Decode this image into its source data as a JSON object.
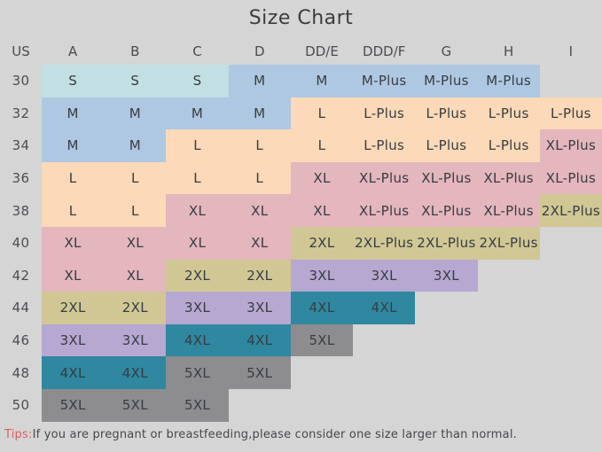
{
  "title": "Size Chart",
  "palette": {
    "cyan": "#c2dfe4",
    "blue": "#aec8e2",
    "peach": "#fcd9b8",
    "pink": "#e4b6bd",
    "olive": "#d0c795",
    "purple": "#b6a8d1",
    "teal": "#2f87a0",
    "gray": "#8d8d90",
    "background": "#d5d5d5",
    "tips_red": "#dd6060"
  },
  "chart_data": {
    "type": "table",
    "title": "Size Chart",
    "columns": [
      "US",
      "A",
      "B",
      "C",
      "D",
      "DD/E",
      "DDD/F",
      "G",
      "H",
      "I"
    ],
    "rows": [
      {
        "us": "30",
        "cells": [
          {
            "size": "S",
            "color": "cyan"
          },
          {
            "size": "S",
            "color": "cyan"
          },
          {
            "size": "S",
            "color": "cyan"
          },
          {
            "size": "M",
            "color": "blue"
          },
          {
            "size": "M",
            "color": "blue"
          },
          {
            "size": "M-Plus",
            "color": "blue"
          },
          {
            "size": "M-Plus",
            "color": "blue"
          },
          {
            "size": "M-Plus",
            "color": "blue"
          },
          null
        ]
      },
      {
        "us": "32",
        "cells": [
          {
            "size": "M",
            "color": "blue"
          },
          {
            "size": "M",
            "color": "blue"
          },
          {
            "size": "M",
            "color": "blue"
          },
          {
            "size": "M",
            "color": "blue"
          },
          {
            "size": "L",
            "color": "peach"
          },
          {
            "size": "L-Plus",
            "color": "peach"
          },
          {
            "size": "L-Plus",
            "color": "peach"
          },
          {
            "size": "L-Plus",
            "color": "peach"
          },
          {
            "size": "L-Plus",
            "color": "peach"
          }
        ]
      },
      {
        "us": "34",
        "cells": [
          {
            "size": "M",
            "color": "blue"
          },
          {
            "size": "M",
            "color": "blue"
          },
          {
            "size": "L",
            "color": "peach"
          },
          {
            "size": "L",
            "color": "peach"
          },
          {
            "size": "L",
            "color": "peach"
          },
          {
            "size": "L-Plus",
            "color": "peach"
          },
          {
            "size": "L-Plus",
            "color": "peach"
          },
          {
            "size": "L-Plus",
            "color": "peach"
          },
          {
            "size": "XL-Plus",
            "color": "pink"
          }
        ]
      },
      {
        "us": "36",
        "cells": [
          {
            "size": "L",
            "color": "peach"
          },
          {
            "size": "L",
            "color": "peach"
          },
          {
            "size": "L",
            "color": "peach"
          },
          {
            "size": "L",
            "color": "peach"
          },
          {
            "size": "XL",
            "color": "pink"
          },
          {
            "size": "XL-Plus",
            "color": "pink"
          },
          {
            "size": "XL-Plus",
            "color": "pink"
          },
          {
            "size": "XL-Plus",
            "color": "pink"
          },
          {
            "size": "XL-Plus",
            "color": "pink"
          }
        ]
      },
      {
        "us": "38",
        "cells": [
          {
            "size": "L",
            "color": "peach"
          },
          {
            "size": "L",
            "color": "peach"
          },
          {
            "size": "XL",
            "color": "pink"
          },
          {
            "size": "XL",
            "color": "pink"
          },
          {
            "size": "XL",
            "color": "pink"
          },
          {
            "size": "XL-Plus",
            "color": "pink"
          },
          {
            "size": "XL-Plus",
            "color": "pink"
          },
          {
            "size": "XL-Plus",
            "color": "pink"
          },
          {
            "size": "2XL-Plus",
            "color": "olive"
          }
        ]
      },
      {
        "us": "40",
        "cells": [
          {
            "size": "XL",
            "color": "pink"
          },
          {
            "size": "XL",
            "color": "pink"
          },
          {
            "size": "XL",
            "color": "pink"
          },
          {
            "size": "XL",
            "color": "pink"
          },
          {
            "size": "2XL",
            "color": "olive"
          },
          {
            "size": "2XL-Plus",
            "color": "olive"
          },
          {
            "size": "2XL-Plus",
            "color": "olive"
          },
          {
            "size": "2XL-Plus",
            "color": "olive"
          },
          null
        ]
      },
      {
        "us": "42",
        "cells": [
          {
            "size": "XL",
            "color": "pink"
          },
          {
            "size": "XL",
            "color": "pink"
          },
          {
            "size": "2XL",
            "color": "olive"
          },
          {
            "size": "2XL",
            "color": "olive"
          },
          {
            "size": "3XL",
            "color": "purple"
          },
          {
            "size": "3XL",
            "color": "purple"
          },
          {
            "size": "3XL",
            "color": "purple"
          },
          null,
          null
        ]
      },
      {
        "us": "44",
        "cells": [
          {
            "size": "2XL",
            "color": "olive"
          },
          {
            "size": "2XL",
            "color": "olive"
          },
          {
            "size": "3XL",
            "color": "purple"
          },
          {
            "size": "3XL",
            "color": "purple"
          },
          {
            "size": "4XL",
            "color": "teal"
          },
          {
            "size": "4XL",
            "color": "teal"
          },
          null,
          null,
          null
        ]
      },
      {
        "us": "46",
        "cells": [
          {
            "size": "3XL",
            "color": "purple"
          },
          {
            "size": "3XL",
            "color": "purple"
          },
          {
            "size": "4XL",
            "color": "teal"
          },
          {
            "size": "4XL",
            "color": "teal"
          },
          {
            "size": "5XL",
            "color": "gray"
          },
          null,
          null,
          null,
          null
        ]
      },
      {
        "us": "48",
        "cells": [
          {
            "size": "4XL",
            "color": "teal"
          },
          {
            "size": "4XL",
            "color": "teal"
          },
          {
            "size": "5XL",
            "color": "gray"
          },
          {
            "size": "5XL",
            "color": "gray"
          },
          null,
          null,
          null,
          null,
          null
        ]
      },
      {
        "us": "50",
        "cells": [
          {
            "size": "5XL",
            "color": "gray"
          },
          {
            "size": "5XL",
            "color": "gray"
          },
          {
            "size": "5XL",
            "color": "gray"
          },
          null,
          null,
          null,
          null,
          null,
          null
        ]
      }
    ]
  },
  "tips": {
    "label": "Tips:",
    "text": "If you are pregnant or breastfeeding,please consider one size larger than normal."
  }
}
